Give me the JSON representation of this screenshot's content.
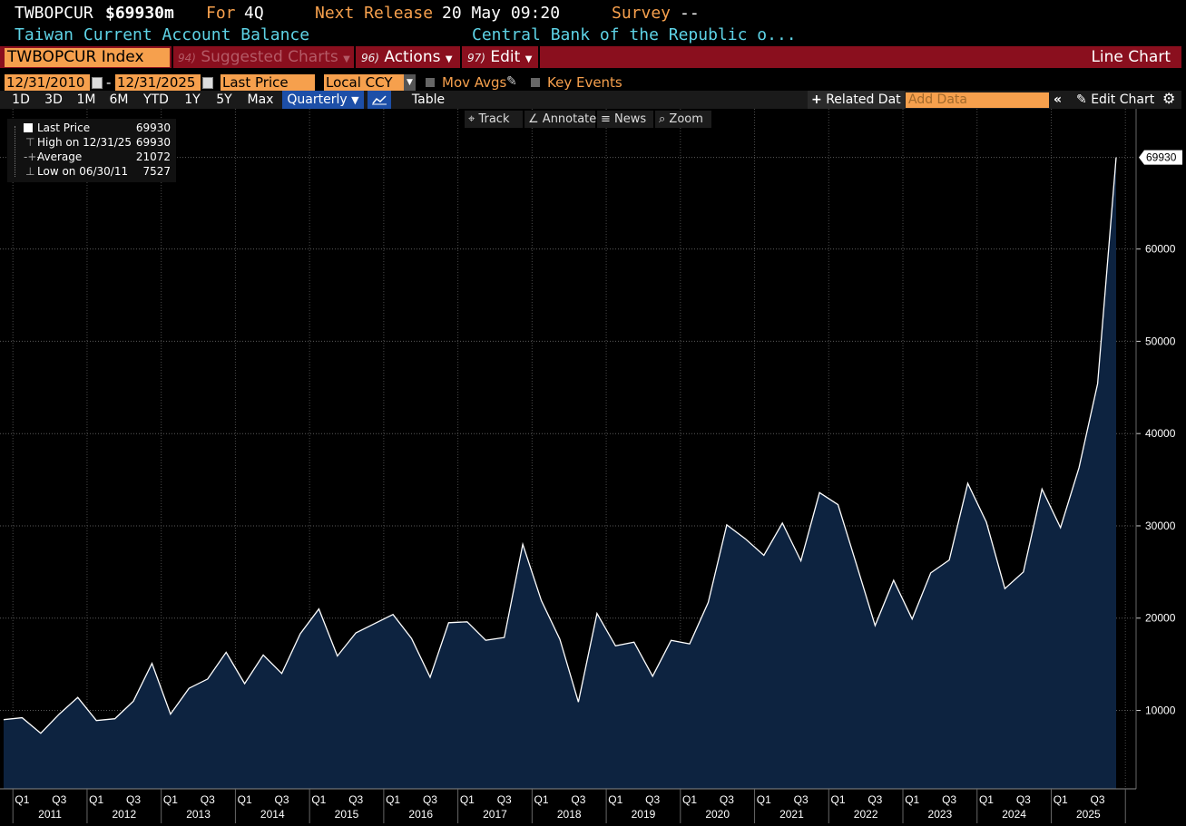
{
  "header": {
    "ticker": "TWBOPCUR",
    "price": "$69930m",
    "period_label": "For",
    "period": "4Q",
    "next_release_label": "Next Release",
    "next_release": "20 May 09:20",
    "survey_label": "Survey",
    "survey": "--",
    "description": "Taiwan Current Account Balance",
    "source": "Central Bank of the Republic o..."
  },
  "toolbar": {
    "security": "TWBOPCUR Index",
    "suggested_num": "94)",
    "suggested_label": "Suggested Charts",
    "actions_num": "96)",
    "actions_label": "Actions",
    "edit_num": "97)",
    "edit_label": "Edit",
    "view_title": "Line Chart"
  },
  "controls": {
    "start_date": "12/31/2010",
    "date_sep": "-",
    "end_date": "12/31/2025",
    "field": "Last Price",
    "currency": "Local CCY",
    "mov_avgs": "Mov Avgs",
    "key_events": "Key Events"
  },
  "ranges": [
    "1D",
    "3D",
    "1M",
    "6M",
    "YTD",
    "1Y",
    "5Y",
    "Max"
  ],
  "frequency": "Quarterly",
  "table_label": "Table",
  "related_label": "Related Dat",
  "add_data_placeholder": "Add Data",
  "edit_chart_label": "Edit Chart",
  "chart_tools": [
    "Track",
    "Annotate",
    "News",
    "Zoom"
  ],
  "legend": [
    {
      "name": "Last Price",
      "value": "69930"
    },
    {
      "name": "High on 12/31/25",
      "value": "69930"
    },
    {
      "name": "Average",
      "value": "21072"
    },
    {
      "name": "Low on 06/30/11",
      "value": "7527"
    }
  ],
  "colors": {
    "area_fill": "#0d2340",
    "line": "#ffffff",
    "accent": "#f6a04d",
    "toolbar": "#8a0f1e",
    "cyan": "#5ed3e6"
  },
  "chart_data": {
    "type": "area",
    "series": [
      {
        "name": "Last Price",
        "values": [
          9000,
          9200,
          7527,
          9600,
          11400,
          8900,
          9100,
          11000,
          15100,
          9600,
          12400,
          13400,
          16300,
          12900,
          16000,
          14000,
          18300,
          21000,
          15900,
          18400,
          19400,
          20400,
          17800,
          13600,
          19500,
          19600,
          17600,
          17900,
          28000,
          21900,
          17700,
          10900,
          20500,
          17000,
          17400,
          13700,
          17600,
          17200,
          21700,
          30100,
          28600,
          26800,
          30300,
          26200,
          33600,
          32300,
          25800,
          19200,
          24100,
          19900,
          24900,
          26300,
          34600,
          30400,
          23200,
          25000,
          34000,
          29800,
          36300,
          45400,
          69930
        ]
      }
    ],
    "x_start": "12/31/2010",
    "x_end": "12/31/2025",
    "x_frequency": "Quarterly",
    "years": [
      "2011",
      "2012",
      "2013",
      "2014",
      "2015",
      "2016",
      "2017",
      "2018",
      "2019",
      "2020",
      "2021",
      "2022",
      "2023",
      "2024",
      "2025"
    ],
    "quarter_labels": [
      "Q1",
      "Q3"
    ],
    "y_ticks": [
      10000,
      20000,
      30000,
      40000,
      50000,
      60000
    ],
    "ylim": [
      1500,
      75000
    ],
    "last_value_label": "69930",
    "grid": true,
    "legend_position": "top-left"
  }
}
